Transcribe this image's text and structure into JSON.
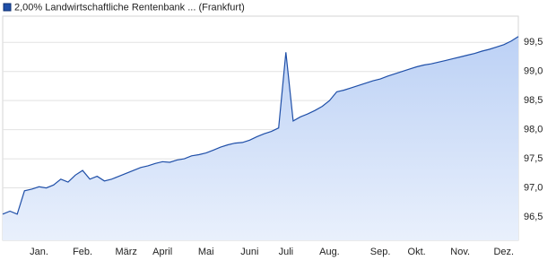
{
  "chart_data": {
    "type": "area",
    "categories": [
      null,
      null,
      null,
      null,
      null,
      "Jan.",
      null,
      null,
      null,
      null,
      null,
      "Feb.",
      null,
      null,
      null,
      null,
      null,
      "März",
      null,
      null,
      null,
      null,
      "April",
      null,
      null,
      null,
      null,
      null,
      "Mai",
      null,
      null,
      null,
      null,
      null,
      "Juni",
      null,
      null,
      null,
      null,
      "Juli",
      null,
      null,
      null,
      null,
      null,
      "Aug.",
      null,
      null,
      null,
      null,
      null,
      null,
      "Sep.",
      null,
      null,
      null,
      null,
      "Okt.",
      null,
      null,
      null,
      null,
      null,
      "Nov.",
      null,
      null,
      null,
      null,
      null,
      "Dez.",
      null,
      null
    ],
    "series": [
      {
        "name": "2,00% Landwirtschaftliche Rentenbank ... (Frankfurt)",
        "color": "#1f4fa8",
        "values": [
          96.55,
          96.6,
          96.55,
          96.95,
          96.98,
          97.02,
          97.0,
          97.05,
          97.15,
          97.1,
          97.22,
          97.3,
          97.15,
          97.2,
          97.12,
          97.15,
          97.2,
          97.25,
          97.3,
          97.35,
          97.38,
          97.42,
          97.45,
          97.44,
          97.48,
          97.5,
          97.55,
          97.57,
          97.6,
          97.65,
          97.7,
          97.74,
          97.77,
          97.78,
          97.82,
          97.88,
          97.93,
          97.97,
          98.03,
          99.33,
          98.15,
          98.22,
          98.27,
          98.33,
          98.4,
          98.5,
          98.65,
          98.68,
          98.72,
          98.76,
          98.8,
          98.84,
          98.87,
          98.92,
          98.96,
          99.0,
          99.04,
          99.08,
          99.11,
          99.13,
          99.16,
          99.19,
          99.22,
          99.25,
          99.28,
          99.31,
          99.35,
          99.38,
          99.42,
          99.46,
          99.52,
          99.6
        ]
      }
    ],
    "ylim": [
      96.1,
      99.95
    ],
    "yticks": [
      {
        "value": 96.5,
        "label": "96,5"
      },
      {
        "value": 97.0,
        "label": "97,0"
      },
      {
        "value": 97.5,
        "label": "97,5"
      },
      {
        "value": 98.0,
        "label": "98,0"
      },
      {
        "value": 98.5,
        "label": "98,5"
      },
      {
        "value": 99.0,
        "label": "99,0"
      },
      {
        "value": 99.5,
        "label": "99,5"
      }
    ],
    "grid": true
  }
}
